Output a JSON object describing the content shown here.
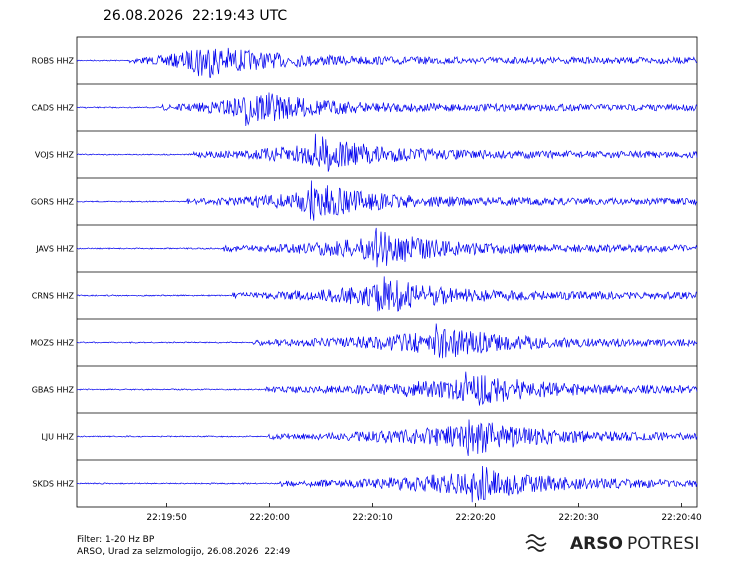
{
  "chart_data": {
    "type": "seismogram",
    "title": "26.08.2026  22:19:43 UTC",
    "categories": [
      "ROBS HHZ",
      "CADS HHZ",
      "VOJS HHZ",
      "GORS HHZ",
      "JAVS HHZ",
      "CRNS HHZ",
      "MOZS HHZ",
      "GBAS HHZ",
      "LJU HHZ",
      "SKDS HHZ"
    ],
    "onsets": [
      46.4,
      49.6,
      52.5,
      52,
      55.4,
      56.4,
      58.3,
      59.6,
      59.9,
      61
    ],
    "peaks": [
      52.8,
      57.6,
      64.4,
      63.9,
      70.2,
      70.5,
      76,
      79,
      79,
      79.5
    ],
    "color": "#0000ee",
    "xlim": [
      41.3,
      101.5
    ],
    "xticks": [
      {
        "value": 50,
        "label": "22:19:50"
      },
      {
        "value": 60,
        "label": "22:20:00"
      },
      {
        "value": 70,
        "label": "22:20:10"
      },
      {
        "value": 80,
        "label": "22:20:20"
      },
      {
        "value": 90,
        "label": "22:20:30"
      },
      {
        "value": 100,
        "label": "22:20:40"
      }
    ],
    "filter": "Filter: 1-20 Hz BP",
    "credit": "ARSO, Urad za selzmologijo, 26.08.2026  22:49",
    "logo": {
      "bold": "ARSO",
      "light": "POTRESI"
    }
  }
}
